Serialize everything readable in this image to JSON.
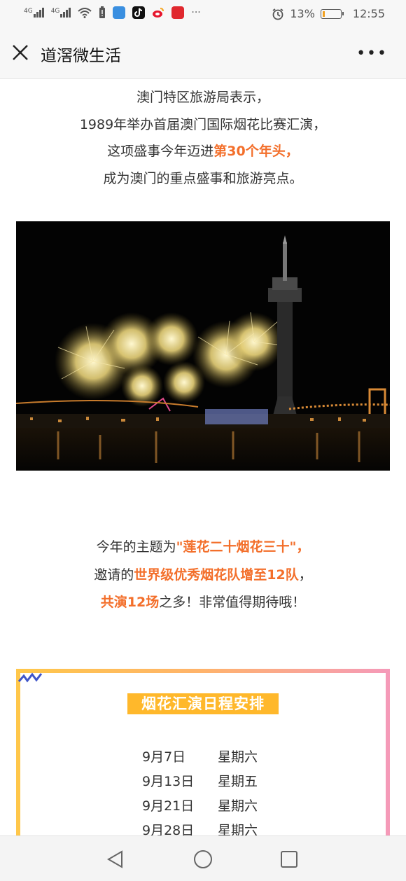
{
  "status_bar": {
    "signal1_label": "4G",
    "signal2_label": "4G",
    "battery_percent": "13%",
    "battery_level": 0.13,
    "time": "12:55",
    "more_indicator": "···"
  },
  "navbar": {
    "title": "道滘微生活"
  },
  "intro": {
    "line1": "澳门特区旅游局表示，",
    "line2": "1989年举办首届澳门国际烟花比赛汇演，",
    "line3_prefix": "这项盛事今年迈进",
    "line3_highlight": "第30个年头，",
    "line4": "成为澳门的重点盛事和旅游亮点。"
  },
  "theme": {
    "line1_prefix": "今年的主题为",
    "line1_quote_open": "\"",
    "line1_highlight": "莲花二十烟花三十",
    "line1_quote_close": "\"，",
    "line2_prefix": "邀请的",
    "line2_highlight": "世界级优秀烟花队增至12队",
    "line2_suffix": "，",
    "line3_highlight": "共演12场",
    "line3_suffix": "之多！非常值得期待哦！"
  },
  "schedule": {
    "title": "烟花汇演日程安排",
    "rows": [
      {
        "date": "9月7日",
        "weekday": "星期六"
      },
      {
        "date": "9月13日",
        "weekday": "星期五"
      },
      {
        "date": "9月21日",
        "weekday": "星期六"
      },
      {
        "date": "9月28日",
        "weekday": "星期六"
      }
    ]
  },
  "colors": {
    "highlight": "#f36f2b",
    "schedule_title_bg": "#ffb82b",
    "border_start": "#ffc74a",
    "border_end": "#f59ab8"
  },
  "icons": {
    "close": "close-icon",
    "more": "more-icon",
    "back": "back-triangle-icon",
    "home": "home-circle-icon",
    "recent": "recent-square-icon"
  }
}
